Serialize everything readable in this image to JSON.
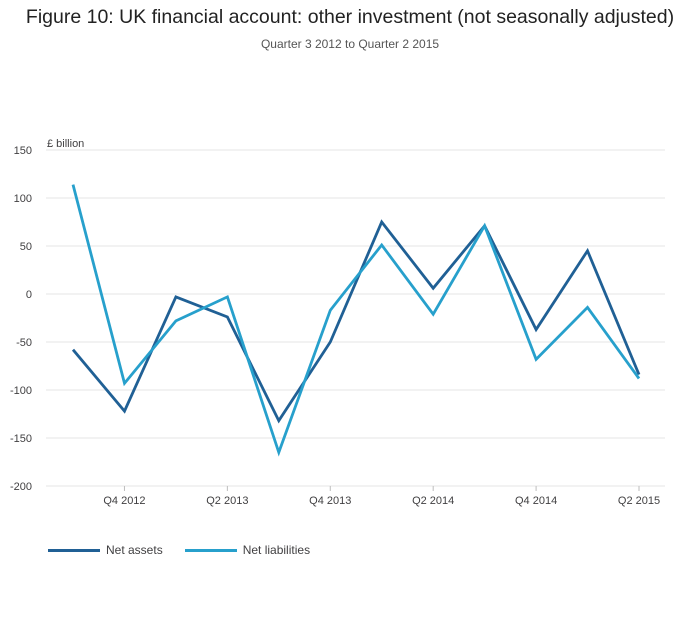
{
  "title": "Figure 10: UK financial account: other investment (not seasonally adjusted)",
  "subtitle": "Quarter 3 2012 to Quarter 2 2015",
  "chart_data": {
    "type": "line",
    "title": "Figure 10: UK financial account: other investment (not seasonally adjusted)",
    "subtitle": "Quarter 3 2012 to Quarter 2 2015",
    "ylabel": "£ billion",
    "xlabel": "",
    "ylim": [
      -200,
      150
    ],
    "yticks": [
      150,
      100,
      50,
      0,
      -50,
      -100,
      -150,
      -200
    ],
    "x": [
      "Q3 2012",
      "Q4 2012",
      "Q1 2013",
      "Q2 2013",
      "Q3 2013",
      "Q4 2013",
      "Q1 2014",
      "Q2 2014",
      "Q3 2014",
      "Q4 2014",
      "Q1 2015",
      "Q2 2015"
    ],
    "xtick_labels": [
      "Q4 2012",
      "Q2 2013",
      "Q4 2013",
      "Q2 2014",
      "Q4 2014",
      "Q2 2015"
    ],
    "grid": true,
    "legend": "bottom-left",
    "series": [
      {
        "name": "Net assets",
        "color": "#206095",
        "values": [
          -58,
          -122,
          -3,
          -24,
          -132,
          -50,
          75,
          6,
          71,
          -37,
          45,
          -84
        ]
      },
      {
        "name": "Net liabilities",
        "color": "#27a0cc",
        "values": [
          114,
          -93,
          -28,
          -3,
          -165,
          -17,
          51,
          -21,
          71,
          -68,
          -14,
          -88
        ]
      }
    ]
  }
}
